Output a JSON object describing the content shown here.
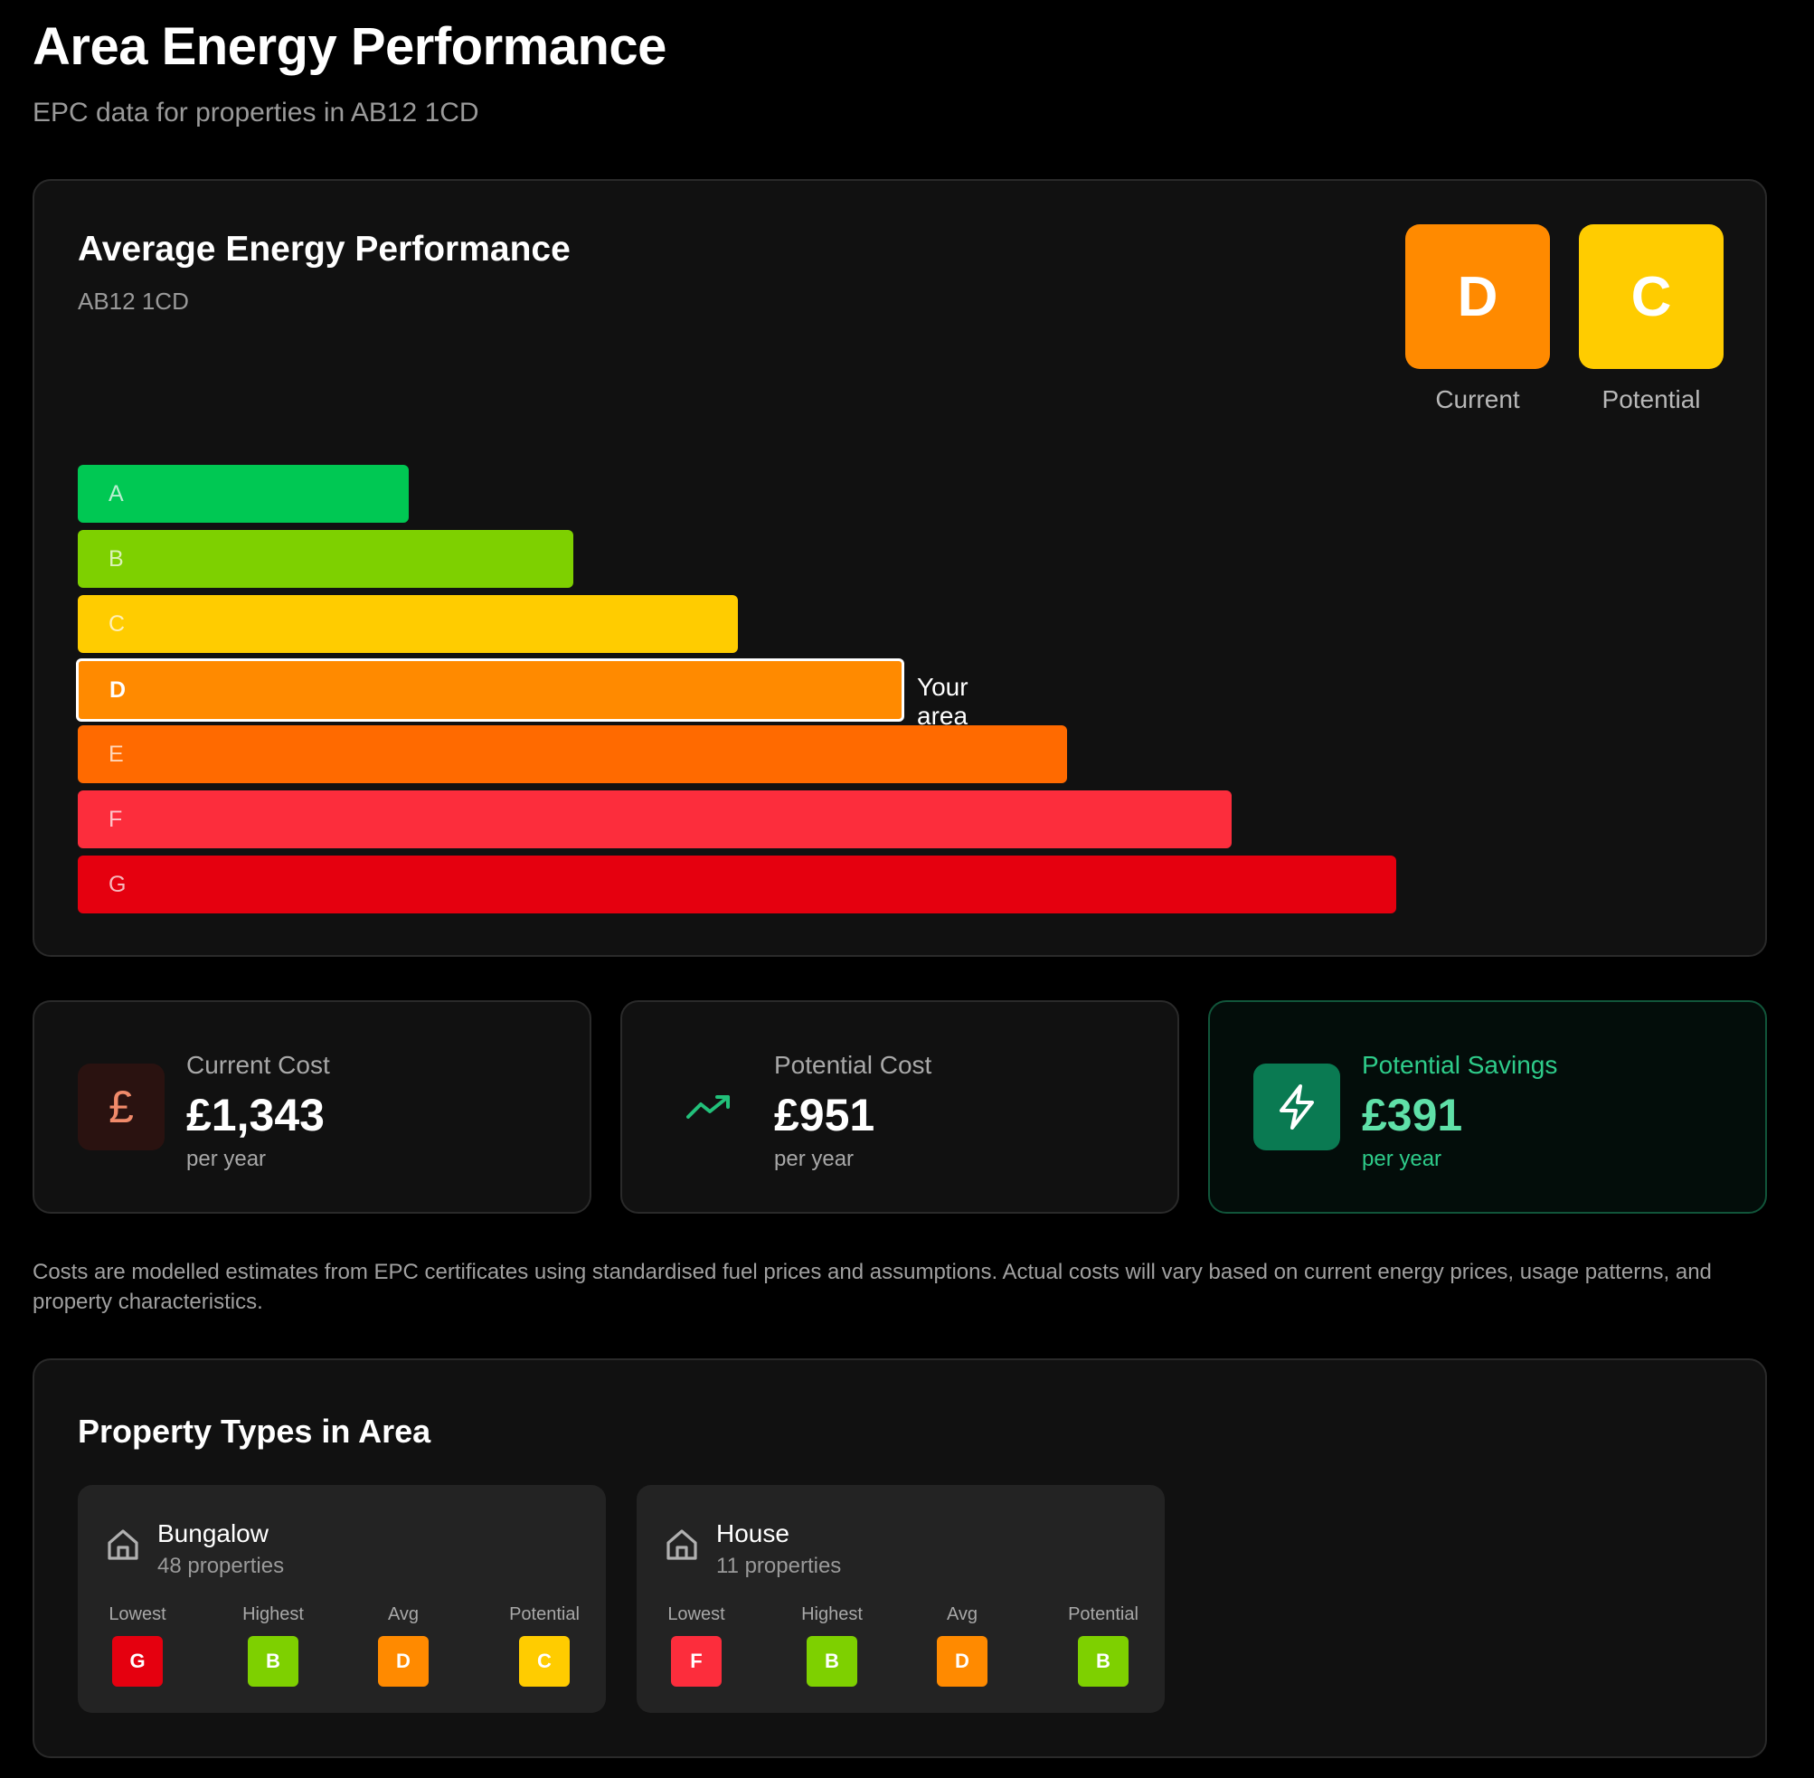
{
  "page": {
    "title": "Area Energy Performance",
    "subtitle": "EPC data for properties in AB12 1CD"
  },
  "epc": {
    "title": "Average Energy Performance",
    "postcode": "AB12 1CD",
    "current": {
      "rating": "D",
      "label": "Current",
      "color": "#ff8a00"
    },
    "potential": {
      "rating": "C",
      "label": "Potential",
      "color": "#ffcc00"
    },
    "your_area_label": "Your area",
    "highlight_band": "D",
    "bands": [
      {
        "letter": "A",
        "color": "#00c853"
      },
      {
        "letter": "B",
        "color": "#7ed000"
      },
      {
        "letter": "C",
        "color": "#ffcc00"
      },
      {
        "letter": "D",
        "color": "#ff8a00"
      },
      {
        "letter": "E",
        "color": "#ff6a00"
      },
      {
        "letter": "F",
        "color": "#fc2d3c"
      },
      {
        "letter": "G",
        "color": "#e5000f"
      }
    ]
  },
  "costs": {
    "current": {
      "label": "Current Cost",
      "value": "£1,343",
      "unit": "per year",
      "icon": "pound-icon"
    },
    "potential": {
      "label": "Potential Cost",
      "value": "£951",
      "unit": "per year",
      "icon": "trending-up-icon"
    },
    "savings": {
      "label": "Potential Savings",
      "value": "£391",
      "unit": "per year",
      "icon": "lightning-icon"
    }
  },
  "disclaimer": "Costs are modelled estimates from EPC certificates using standardised fuel prices and assumptions. Actual costs will vary based on current energy prices, usage patterns, and property characteristics.",
  "property_types": {
    "title": "Property Types in Area",
    "stat_labels": {
      "lowest": "Lowest",
      "highest": "Highest",
      "avg": "Avg",
      "potential": "Potential"
    },
    "items": [
      {
        "name": "Bungalow",
        "count": "48 properties",
        "lowest": "G",
        "highest": "B",
        "avg": "D",
        "potential": "C"
      },
      {
        "name": "House",
        "count": "11 properties",
        "lowest": "F",
        "highest": "B",
        "avg": "D",
        "potential": "B"
      }
    ]
  },
  "colors": {
    "A": "#00c853",
    "B": "#7ed000",
    "C": "#ffcc00",
    "D": "#ff8a00",
    "E": "#ff6a00",
    "F": "#fc2d3c",
    "G": "#e5000f",
    "savings_accent": "#2ecc8a"
  }
}
